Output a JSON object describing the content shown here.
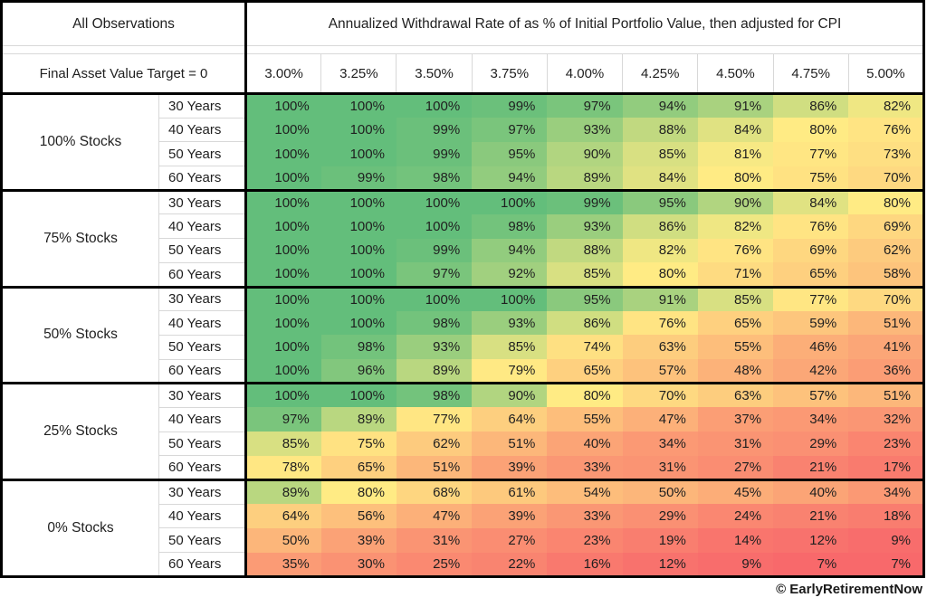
{
  "header": {
    "left_title": "All Observations",
    "left_subtitle": "Final Asset Value Target = 0",
    "top_title": "Annualized Withdrawal Rate of as % of Initial Portfolio Value, then adjusted for CPI"
  },
  "chart_data": {
    "type": "heatmap",
    "value_unit": "%",
    "columns": [
      "3.00%",
      "3.25%",
      "3.50%",
      "3.75%",
      "4.00%",
      "4.25%",
      "4.50%",
      "4.75%",
      "5.00%"
    ],
    "row_groups": [
      {
        "label": "100% Stocks",
        "rows": [
          {
            "label": "30 Years",
            "values": [
              100,
              100,
              100,
              99,
              97,
              94,
              91,
              86,
              82
            ]
          },
          {
            "label": "40 Years",
            "values": [
              100,
              100,
              99,
              97,
              93,
              88,
              84,
              80,
              76
            ]
          },
          {
            "label": "50 Years",
            "values": [
              100,
              100,
              99,
              95,
              90,
              85,
              81,
              77,
              73
            ]
          },
          {
            "label": "60 Years",
            "values": [
              100,
              99,
              98,
              94,
              89,
              84,
              80,
              75,
              70
            ]
          }
        ]
      },
      {
        "label": "75% Stocks",
        "rows": [
          {
            "label": "30 Years",
            "values": [
              100,
              100,
              100,
              100,
              99,
              95,
              90,
              84,
              80
            ]
          },
          {
            "label": "40 Years",
            "values": [
              100,
              100,
              100,
              98,
              93,
              86,
              82,
              76,
              69
            ]
          },
          {
            "label": "50 Years",
            "values": [
              100,
              100,
              99,
              94,
              88,
              82,
              76,
              69,
              62
            ]
          },
          {
            "label": "60 Years",
            "values": [
              100,
              100,
              97,
              92,
              85,
              80,
              71,
              65,
              58
            ]
          }
        ]
      },
      {
        "label": "50% Stocks",
        "rows": [
          {
            "label": "30 Years",
            "values": [
              100,
              100,
              100,
              100,
              95,
              91,
              85,
              77,
              70
            ]
          },
          {
            "label": "40 Years",
            "values": [
              100,
              100,
              98,
              93,
              86,
              76,
              65,
              59,
              51
            ]
          },
          {
            "label": "50 Years",
            "values": [
              100,
              98,
              93,
              85,
              74,
              63,
              55,
              46,
              41
            ]
          },
          {
            "label": "60 Years",
            "values": [
              100,
              96,
              89,
              79,
              65,
              57,
              48,
              42,
              36
            ]
          }
        ]
      },
      {
        "label": "25% Stocks",
        "rows": [
          {
            "label": "30 Years",
            "values": [
              100,
              100,
              98,
              90,
              80,
              70,
              63,
              57,
              51
            ]
          },
          {
            "label": "40 Years",
            "values": [
              97,
              89,
              77,
              64,
              55,
              47,
              37,
              34,
              32
            ]
          },
          {
            "label": "50 Years",
            "values": [
              85,
              75,
              62,
              51,
              40,
              34,
              31,
              29,
              23
            ]
          },
          {
            "label": "60 Years",
            "values": [
              78,
              65,
              51,
              39,
              33,
              31,
              27,
              21,
              17
            ]
          }
        ]
      },
      {
        "label": "0% Stocks",
        "rows": [
          {
            "label": "30 Years",
            "values": [
              89,
              80,
              68,
              61,
              54,
              50,
              45,
              40,
              34
            ]
          },
          {
            "label": "40 Years",
            "values": [
              64,
              56,
              47,
              39,
              33,
              29,
              24,
              21,
              18
            ]
          },
          {
            "label": "50 Years",
            "values": [
              50,
              39,
              31,
              27,
              23,
              19,
              14,
              12,
              9
            ]
          },
          {
            "label": "60 Years",
            "values": [
              35,
              30,
              25,
              22,
              16,
              12,
              9,
              7,
              7
            ]
          }
        ]
      }
    ],
    "color_scale": {
      "min_value": 7,
      "mid_value": 80,
      "max_value": 100,
      "min_color": "#F8696B",
      "mid_color": "#FFEB84",
      "max_color": "#63BE7B"
    }
  },
  "footer": {
    "credit": "© EarlyRetirementNow"
  }
}
